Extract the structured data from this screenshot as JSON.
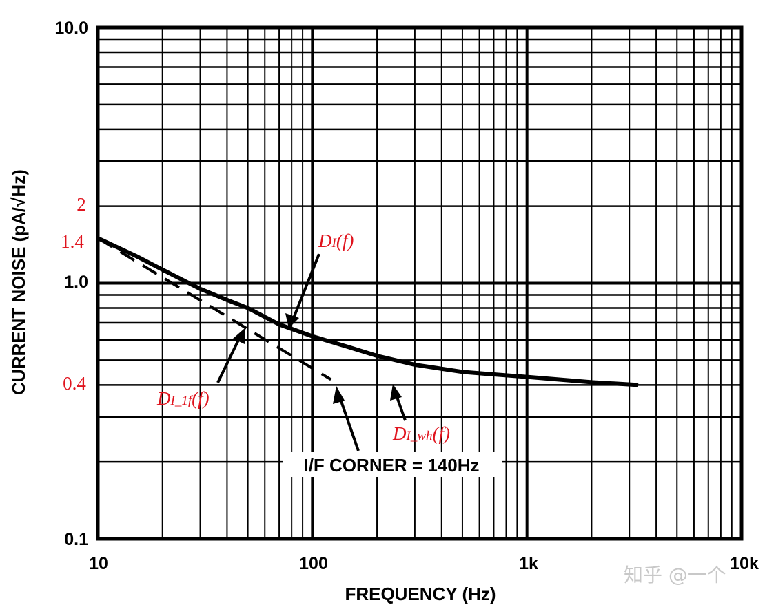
{
  "chart_data": {
    "type": "line",
    "xlabel": "FREQUENCY (Hz)",
    "ylabel": "CURRENT NOISE (pA/√Hz)",
    "x_scale": "log",
    "y_scale": "log",
    "xlim": [
      10,
      10000
    ],
    "ylim": [
      0.1,
      10
    ],
    "grid": true,
    "x_ticks": [
      "10",
      "100",
      "1k",
      "10k"
    ],
    "y_ticks": [
      "10.0",
      "1.0",
      "0.1"
    ],
    "y_annotation_ticks": [
      {
        "label": "2",
        "value": 2
      },
      {
        "label": "1.4",
        "value": 1.4
      },
      {
        "label": "0.4",
        "value": 0.4
      }
    ],
    "series": [
      {
        "style": "solid",
        "x": [
          10,
          15,
          20,
          30,
          40,
          50,
          70,
          100,
          150,
          200,
          300,
          500,
          700,
          1000,
          2000,
          3300
        ],
        "y": [
          1.5,
          1.28,
          1.13,
          0.95,
          0.86,
          0.8,
          0.69,
          0.62,
          0.56,
          0.52,
          0.48,
          0.45,
          0.44,
          0.43,
          0.41,
          0.4
        ]
      },
      {
        "style": "dashed",
        "x": [
          10,
          122
        ],
        "y": [
          1.5,
          0.42
        ]
      }
    ],
    "annotations": {
      "total": {
        "main": "D",
        "sub": "I",
        "tail": "(f)"
      },
      "one_over_f": {
        "main": "D",
        "sub": "I_1f",
        "tail": "(f)"
      },
      "white": {
        "main": "D",
        "sub": "I_wh",
        "tail": "(f)"
      },
      "corner": "I/F CORNER = 140Hz"
    },
    "colors": {
      "annotation": "#e0141e",
      "lines": "#000000"
    }
  },
  "watermark": "知乎 @一个"
}
